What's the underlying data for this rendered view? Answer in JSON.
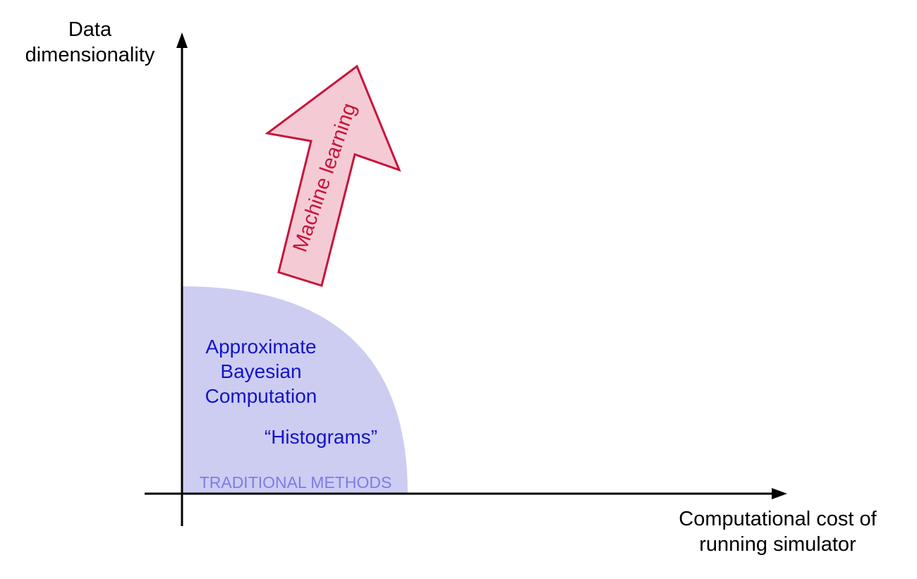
{
  "axes": {
    "y_label_line1": "Data",
    "y_label_line2": "dimensionality",
    "x_label_line1": "Computational cost of",
    "x_label_line2": "running simulator"
  },
  "region": {
    "label": "TRADITIONAL METHODS",
    "fill_color": "#cdcdf2",
    "label_color": "#7d7de6"
  },
  "methods": {
    "abc_line1": "Approximate",
    "abc_line2": "Bayesian",
    "abc_line3": "Computation",
    "histograms": "“Histograms”",
    "text_color": "#1414c8"
  },
  "arrow": {
    "label": "Machine learning",
    "fill_color": "#f4cbd4",
    "stroke_color": "#c8143c"
  },
  "axis_color": "#000000"
}
